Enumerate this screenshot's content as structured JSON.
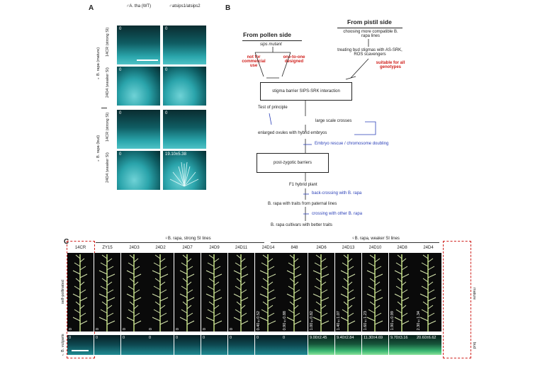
{
  "panel_a": {
    "label": "A",
    "col_headers": [
      "♂A. tha (WT)",
      "♂atsips1/atsips2"
    ],
    "row_groups": [
      {
        "title": "♀B. rapa (mature)",
        "rows": [
          "14CR (strong SI)",
          "24D4 (weaker SI)"
        ]
      },
      {
        "title": "♀B. rapa (bud)",
        "rows": [
          "14CR (strong SI)",
          "24D4 (weaker SI)"
        ]
      }
    ],
    "values": [
      [
        "0",
        "0"
      ],
      [
        "0",
        "0"
      ],
      [
        "0",
        "0"
      ],
      [
        "0",
        "19.10±5.38"
      ]
    ]
  },
  "panel_b": {
    "label": "B",
    "pollen_title": "From pollen side",
    "pollen_sub": "sips mutant",
    "pollen_note_left": "not for commercial use",
    "pollen_note_right": "one-to-one designed",
    "pistil_title": "From pistil side",
    "pistil_sub": "choosing more compatible B. rapa lines",
    "pistil_treat": "treating bud stigmas with AS-SRK, ROS scavengers",
    "pistil_note": "suitable for all genotypes",
    "box1": "stigma barrier SIPS-SRK interaction",
    "test": "Test of principle",
    "large": "large scale crosses",
    "enlarged": "enlarged ovules with hybrid embryos",
    "rescue": "Embryo rescue / chromosome doubling",
    "box2": "post-zygotic barriers",
    "f1": "F1 hybrid plant",
    "back": "back-crossing with B. rapa",
    "traits": "B. rapa with traits from paternal lines",
    "crossing": "crossing with other B. rapa",
    "final": "B. rapa cultivars with better traits"
  },
  "panel_c": {
    "label": "C",
    "strong_header": "♀B. rapa, strong SI lines",
    "weak_header": "♀B. rapa, weaker SI lines",
    "left_label_top": "self-pollinated",
    "left_label_bottom": "♂B. vulgaris",
    "right_label_top": "mature",
    "right_label_bottom": "bud",
    "lines": [
      {
        "name": "14CR",
        "self": "0",
        "bud": "0"
      },
      {
        "name": "ZY15",
        "self": "0",
        "bud": "0"
      },
      {
        "name": "24D3",
        "self": "0",
        "bud": "0"
      },
      {
        "name": "24D2",
        "self": "0",
        "bud": "0"
      },
      {
        "name": "24D7",
        "self": "0",
        "bud": "0"
      },
      {
        "name": "24D9",
        "self": "0",
        "bud": "0"
      },
      {
        "name": "24D11",
        "self": "0",
        "bud": "0"
      },
      {
        "name": "24D14",
        "self": "0.40±0.52",
        "bud": "0"
      },
      {
        "name": "848",
        "self": "0.90±0.88",
        "bud": "0"
      },
      {
        "name": "24D6",
        "self": "1.00±0.82",
        "bud": "9.00±2.45"
      },
      {
        "name": "24D13",
        "self": "1.40±1.07",
        "bud": "9.40±2.84"
      },
      {
        "name": "24D10",
        "self": "1.60±1.23",
        "bud": "11.30±4.69"
      },
      {
        "name": "24D8",
        "self": "1.90±0.99",
        "bud": "9.70±3.16"
      },
      {
        "name": "24D4",
        "self": "2.30±1.34",
        "bud": "20.60±6.62"
      }
    ]
  }
}
